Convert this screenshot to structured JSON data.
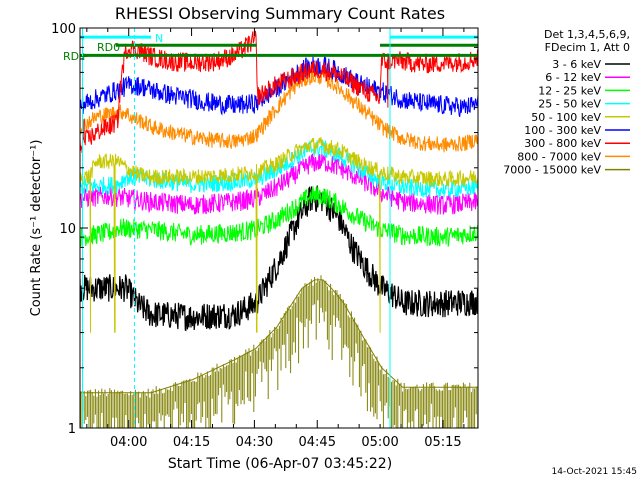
{
  "chart_data": {
    "type": "line",
    "title": "RHESSI Observing Summary Count Rates",
    "xlabel": "Start Time (06-Apr-07 03:45:22)",
    "ylabel": "Count Rate (s⁻¹ detector⁻¹)",
    "yscale": "log",
    "ylim": [
      1,
      100
    ],
    "xlim_minutes": [
      3.0,
      98.0
    ],
    "x_ticks": [
      {
        "label": "04:00",
        "minutes": 14.63
      },
      {
        "label": "04:15",
        "minutes": 29.63
      },
      {
        "label": "04:30",
        "minutes": 44.63
      },
      {
        "label": "04:45",
        "minutes": 59.63
      },
      {
        "label": "05:00",
        "minutes": 74.63
      },
      {
        "label": "05:15",
        "minutes": 89.63
      }
    ],
    "y_ticks": [
      {
        "label": "1",
        "value": 1
      },
      {
        "label": "10",
        "value": 10
      },
      {
        "label": "100",
        "value": 100
      }
    ],
    "legend_header": [
      "Det 1,3,4,5,6,9,",
      "FDecim 1, Att 0"
    ],
    "legend_placement": "right",
    "series": [
      {
        "name": "3 - 6 keV",
        "color": "#000000",
        "noise": 0.07,
        "x": [
          3,
          12,
          14,
          17,
          20,
          30,
          40,
          45,
          50,
          55,
          58,
          61,
          65,
          68,
          72,
          75,
          78,
          80,
          90,
          98
        ],
        "y": [
          5,
          5,
          5,
          4.1,
          3.7,
          3.6,
          3.7,
          4.2,
          6.5,
          11,
          14,
          14,
          11,
          8,
          6,
          5,
          4.6,
          4.2,
          4.2,
          4.3
        ]
      },
      {
        "name": "6 - 12 keV",
        "color": "#ff00ff",
        "noise": 0.05,
        "x": [
          3,
          10,
          20,
          30,
          40,
          45,
          50,
          55,
          58,
          61,
          65,
          70,
          75,
          80,
          90,
          98
        ],
        "y": [
          14,
          14.5,
          13.5,
          13,
          13.5,
          14,
          16,
          19,
          21,
          21.5,
          20,
          17.5,
          15,
          13.5,
          13,
          13.5
        ]
      },
      {
        "name": "12 - 25 keV",
        "color": "#00ff00",
        "noise": 0.05,
        "x": [
          3,
          10,
          12,
          20,
          30,
          40,
          45,
          50,
          55,
          58,
          61,
          65,
          70,
          75,
          80,
          90,
          98
        ],
        "y": [
          9,
          9.5,
          10,
          9.8,
          9.2,
          9.5,
          9.8,
          11,
          13,
          14.5,
          14.5,
          13,
          11,
          9.8,
          9.2,
          9,
          9.5
        ]
      },
      {
        "name": "25 - 50 keV",
        "color": "#00ffff",
        "noise": 0.045,
        "x": [
          3,
          12,
          14,
          20,
          30,
          40,
          45,
          50,
          55,
          58,
          61,
          65,
          70,
          75,
          80,
          90,
          98
        ],
        "y": [
          16,
          16.5,
          18,
          17.5,
          16.5,
          17,
          17.5,
          19.5,
          23,
          25,
          25,
          23,
          19.5,
          17,
          16,
          15.5,
          16
        ]
      },
      {
        "name": "50 - 100 keV",
        "color": "#c8c800",
        "noise": 0.04,
        "x": [
          3,
          5,
          7,
          10,
          12,
          14,
          17,
          20,
          30,
          40,
          45,
          50,
          55,
          58,
          61,
          65,
          70,
          75,
          80,
          90,
          98
        ],
        "y": [
          18,
          18,
          21.5,
          21.5,
          21.5,
          20,
          18.5,
          18,
          18,
          18.5,
          19,
          21,
          24.5,
          26,
          26,
          24.5,
          21,
          19,
          18,
          17.5,
          18
        ]
      },
      {
        "name": "100 - 300 keV",
        "color": "#0000ff",
        "noise": 0.05,
        "x": [
          3,
          10,
          13,
          15,
          18,
          20,
          25,
          30,
          35,
          40,
          45,
          50,
          55,
          58,
          61,
          65,
          70,
          75,
          80,
          85,
          90,
          95,
          98
        ],
        "y": [
          41,
          47,
          50,
          52,
          51,
          49,
          46,
          44,
          42,
          41,
          42,
          50,
          60,
          65,
          65,
          60,
          52,
          48,
          44,
          42,
          41,
          40,
          42
        ]
      },
      {
        "name": "300 - 800 keV",
        "color": "#ff0000",
        "noise": 0.05,
        "x": [
          3,
          5,
          8,
          11,
          12,
          13,
          14,
          15,
          18,
          20,
          25,
          30,
          35,
          40,
          43,
          45,
          45.3,
          46,
          50,
          55,
          58,
          61,
          65,
          70,
          74.5,
          75,
          78,
          80,
          85,
          90,
          95,
          98
        ],
        "y": [
          26,
          28,
          31,
          33,
          35,
          60,
          78,
          80,
          76,
          72,
          68,
          67,
          68,
          73,
          82,
          88,
          46,
          46,
          52,
          58,
          62,
          62,
          58,
          50,
          44,
          68,
          69,
          68,
          66,
          67,
          68,
          71
        ]
      },
      {
        "name": "800 - 7000 keV",
        "color": "#ff8c00",
        "noise": 0.04,
        "x": [
          3,
          7,
          12,
          14,
          15,
          18,
          20,
          25,
          30,
          35,
          40,
          45,
          50,
          55,
          58,
          61,
          65,
          70,
          75,
          80,
          85,
          90,
          95,
          98
        ],
        "y": [
          32,
          36,
          38,
          38,
          36,
          34,
          32,
          30,
          28.5,
          27.5,
          27,
          29,
          40,
          53,
          57,
          57,
          50,
          40,
          32,
          28,
          26.5,
          26,
          26.5,
          28
        ]
      },
      {
        "name": "7000 - 15000 keV",
        "color": "#808000",
        "noise": 0.0,
        "x": [
          3,
          20,
          30,
          40,
          45,
          50,
          53,
          56,
          59,
          61,
          63,
          66,
          70,
          75,
          80,
          98
        ],
        "y": [
          1.5,
          1.5,
          1.75,
          2.2,
          2.5,
          3.2,
          4.0,
          5.0,
          5.5,
          5.5,
          5.0,
          4.2,
          3.0,
          2.0,
          1.6,
          1.6
        ]
      }
    ],
    "annotations": [
      {
        "text": "RD0",
        "color": "#008000"
      },
      {
        "text": "RD+",
        "color": "#008000"
      },
      {
        "text": "N",
        "color": "#00ffff"
      }
    ],
    "markers": {
      "green_flag_top": {
        "value": 82,
        "segments": [
          [
            11.5,
            45.2
          ],
          [
            74.6,
            98
          ]
        ]
      },
      "green_flag_low": {
        "value": 73,
        "segments": [
          [
            3,
            98
          ]
        ]
      },
      "cyan_flag": {
        "value": 90,
        "segments": [
          [
            3,
            20
          ],
          [
            77,
            98
          ]
        ]
      },
      "cyan_solid_lines": [
        3.6,
        77
      ],
      "cyan_dashed_lines": [
        16,
        98
      ],
      "dropouts": [
        {
          "series": "50 - 100 keV",
          "at": 5.5,
          "drop_to": 3.0
        },
        {
          "series": "50 - 100 keV",
          "at": 11.3,
          "drop_to": 3.0
        },
        {
          "series": "50 - 100 keV",
          "at": 45.2,
          "drop_to": 3.0
        },
        {
          "series": "50 - 100 keV",
          "at": 74.6,
          "drop_to": 3.0
        },
        {
          "series": "300 - 800 keV",
          "at": 4.0,
          "drop_to": 35
        },
        {
          "series": "300 - 800 keV",
          "at": 76.5,
          "drop_to": 40
        }
      ]
    },
    "footer_date": "14-Oct-2021 15:45"
  }
}
